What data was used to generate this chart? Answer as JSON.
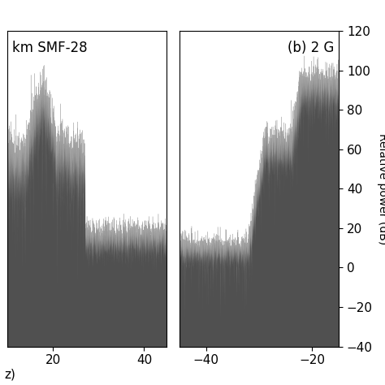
{
  "title_left": "km SMF-28",
  "title_right": "(b) 2 G",
  "ylabel": "Relative power (dB)",
  "xlabel_left": "z)",
  "ylim_left": [
    -40,
    120
  ],
  "ylim_right": [
    -40,
    120
  ],
  "xlim_left": [
    10,
    45
  ],
  "xlim_right": [
    -45,
    -15
  ],
  "yticks_right": [
    -40,
    -20,
    0,
    20,
    40,
    60,
    80,
    100,
    120
  ],
  "xticks_left": [
    20,
    40
  ],
  "xticks_right": [
    -40,
    -20
  ],
  "signal_color": "#505050",
  "bg_color": "#ffffff",
  "tick_labelsize": 11
}
